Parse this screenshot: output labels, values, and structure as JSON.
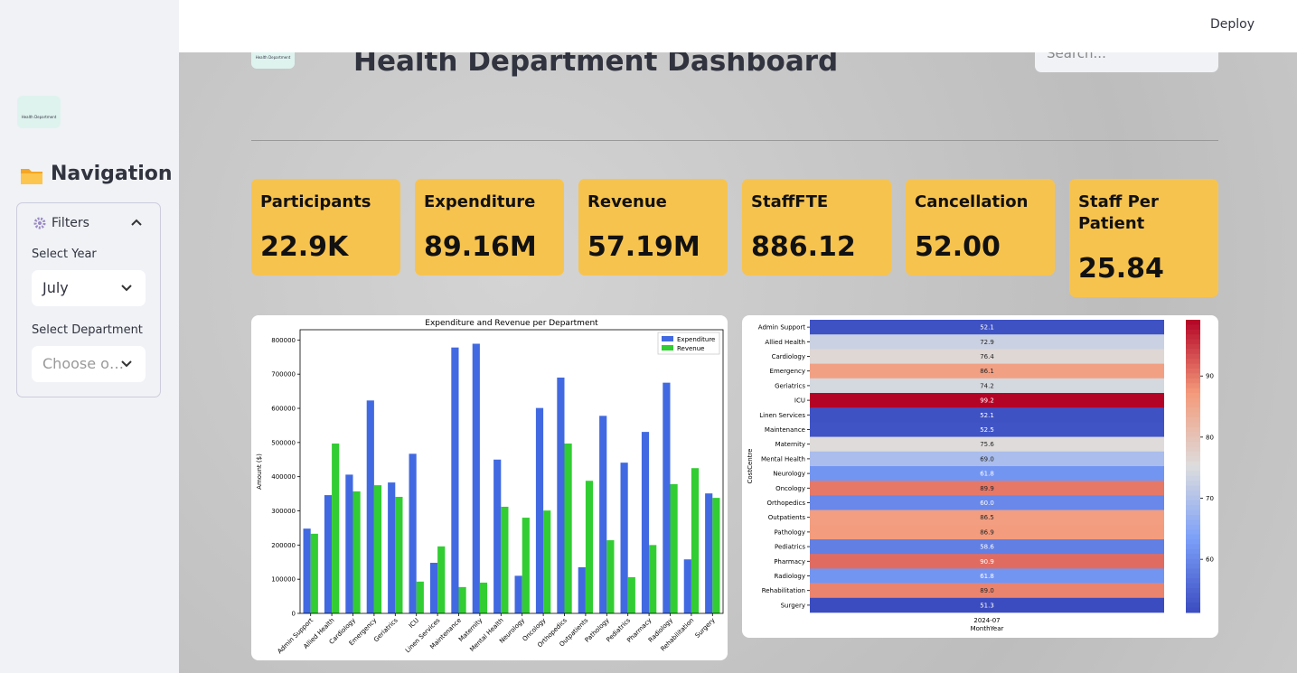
{
  "header": {
    "deploy": "Deploy"
  },
  "sidebar": {
    "logo_text": "Health Department",
    "navigation": "Navigation",
    "filters": "Filters",
    "year_label": "Select Year",
    "year_value": "July",
    "department_label": "Select Department",
    "department_placeholder": "Choose o…"
  },
  "main": {
    "logo_text": "Health Department",
    "title": "Health Department Dashboard",
    "search_placeholder": "Search..."
  },
  "kpis": [
    {
      "label": "Participants",
      "value": "22.9K"
    },
    {
      "label": "Expenditure",
      "value": "89.16M"
    },
    {
      "label": "Revenue",
      "value": "57.19M"
    },
    {
      "label": "StaffFTE",
      "value": "886.12"
    },
    {
      "label": "Cancellation",
      "value": "52.00"
    },
    {
      "label": "Staff Per Patient",
      "value": "25.84"
    }
  ],
  "charts": [
    {
      "type": "bar",
      "title": "Expenditure and Revenue per Department",
      "ylabel": "Amount ($)",
      "categories": [
        "Admin Support",
        "Allied Health",
        "Cardiology",
        "Emergency",
        "Geriatrics",
        "ICU",
        "Linen Services",
        "Maintenance",
        "Maternity",
        "Mental Health",
        "Neurology",
        "Oncology",
        "Orthopedics",
        "Outpatients",
        "Pathology",
        "Pediatrics",
        "Pharmacy",
        "Radiology",
        "Rehabilitation",
        "Surgery"
      ],
      "series": [
        {
          "name": "Expenditure",
          "color": "#4169e1",
          "values": [
            248000,
            346000,
            406000,
            623000,
            383000,
            467000,
            148000,
            778000,
            789000,
            450000,
            110000,
            601000,
            690000,
            135000,
            578000,
            441000,
            531000,
            675000,
            158000,
            351000
          ]
        },
        {
          "name": "Revenue",
          "color": "#32cd32",
          "values": [
            233000,
            497000,
            357000,
            375000,
            341000,
            93000,
            196000,
            77000,
            90000,
            312000,
            280000,
            301000,
            497000,
            388000,
            214000,
            106000,
            200000,
            378000,
            425000,
            338000
          ]
        }
      ],
      "ylim": [
        0,
        830000
      ],
      "yticks": [
        0,
        100000,
        200000,
        300000,
        400000,
        500000,
        600000,
        700000,
        800000
      ],
      "legend": "upper right"
    },
    {
      "type": "heatmap",
      "xlabel": "MonthYear",
      "ylabel": "CostCentre",
      "x": [
        "2024-07"
      ],
      "categories": [
        "Admin Support",
        "Allied Health",
        "Cardiology",
        "Emergency",
        "Geriatrics",
        "ICU",
        "Linen Services",
        "Maintenance",
        "Maternity",
        "Mental Health",
        "Neurology",
        "Oncology",
        "Orthopedics",
        "Outpatients",
        "Pathology",
        "Pediatrics",
        "Pharmacy",
        "Radiology",
        "Rehabilitation",
        "Surgery"
      ],
      "values": [
        52.1,
        72.9,
        76.4,
        86.1,
        74.2,
        99.2,
        52.1,
        52.5,
        75.6,
        69.0,
        61.8,
        89.9,
        60.0,
        86.5,
        86.9,
        58.6,
        90.9,
        61.8,
        89.0,
        51.3
      ],
      "value_labels": [
        "52.1",
        "72.9",
        "76.4",
        "86.1",
        "74.2",
        "99.2",
        "52.1",
        "52.5",
        "75.6",
        "69.0",
        "61.8",
        "89.9",
        "60.0",
        "86.5",
        "86.9",
        "58.6",
        "90.9",
        "61.8",
        "89.0",
        "51.3"
      ],
      "colormap": [
        "#3b4cc0",
        "#7b9ff9",
        "#dddddd",
        "#f49a7b",
        "#b40426"
      ],
      "clim": [
        51.3,
        99.2
      ],
      "colorbar_ticks": [
        60,
        70,
        80,
        90
      ]
    }
  ]
}
